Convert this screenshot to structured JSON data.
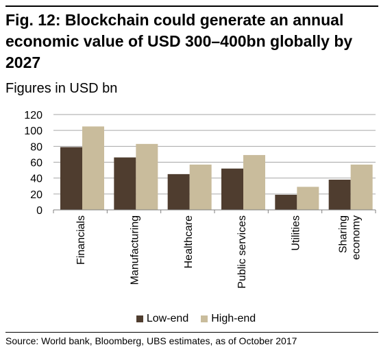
{
  "title": "Fig. 12: Blockchain could generate an annual economic value of USD 300–400bn globally by 2027",
  "subtitle": "Figures in USD bn",
  "source": "Source: World bank, Bloomberg, UBS estimates, as of October 2017",
  "colors": {
    "low": "#4f3d2f",
    "high": "#c9bc9c",
    "grid": "#a6a6a6",
    "axis": "#7f7f7f"
  },
  "chart_data": {
    "type": "bar",
    "categories": [
      "Financials",
      "Manufacturing",
      "Healthcare",
      "Public services",
      "Utilities",
      "Sharing economy"
    ],
    "category_lines": [
      [
        "Financials"
      ],
      [
        "Manufacturing"
      ],
      [
        "Healthcare"
      ],
      [
        "Public services"
      ],
      [
        "Utilities"
      ],
      [
        "Sharing",
        "economy"
      ]
    ],
    "series": [
      {
        "name": "Low-end",
        "values": [
          79,
          66,
          45,
          52,
          19,
          38
        ]
      },
      {
        "name": "High-end",
        "values": [
          105,
          83,
          57,
          69,
          29,
          57
        ]
      }
    ],
    "ylim": [
      0,
      120
    ],
    "yticks": [
      0,
      20,
      40,
      60,
      80,
      100,
      120
    ],
    "grid": true,
    "legend_position": "bottom"
  }
}
